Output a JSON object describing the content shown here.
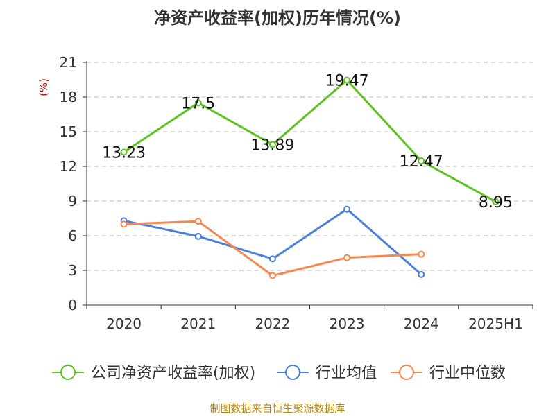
{
  "title": "净资产收益率(加权)历年情况(%)",
  "footer": "制图数据来自恒生聚源数据库",
  "colors": {
    "series_main": "#5ac31e",
    "series_avg": "#4a7fdc",
    "series_median": "#f5874f",
    "unit_label": "#cc0000",
    "axis": "#333333",
    "grid": "#bbbbbb"
  },
  "chart_data": {
    "type": "line",
    "title": "净资产收益率(加权)历年情况(%)",
    "ylabel": "(%)",
    "xlabel": "",
    "categories": [
      "2020",
      "2021",
      "2022",
      "2023",
      "2024",
      "2025H1"
    ],
    "ylim": [
      0,
      21
    ],
    "yticks": [
      0,
      3,
      6,
      9,
      12,
      15,
      18,
      21
    ],
    "ytick_labels": [
      "0",
      "3",
      "6",
      "9",
      "12",
      "15",
      "18",
      "21"
    ],
    "grid": true,
    "legend_position": "bottom",
    "series": [
      {
        "name": "公司净资产收益率(加权)",
        "values": [
          13.23,
          17.5,
          13.89,
          19.47,
          12.47,
          8.95
        ],
        "data_labels": [
          "13.23",
          "17.5",
          "13.89",
          "19.47",
          "12.47",
          "8.95"
        ],
        "color": "#5ac31e"
      },
      {
        "name": "行业均值",
        "values": [
          7.3,
          5.95,
          4.0,
          8.3,
          2.65,
          null
        ],
        "color": "#4a7fdc"
      },
      {
        "name": "行业中位数",
        "values": [
          7.0,
          7.25,
          2.55,
          4.1,
          4.4,
          null
        ],
        "color": "#f5874f"
      }
    ]
  }
}
